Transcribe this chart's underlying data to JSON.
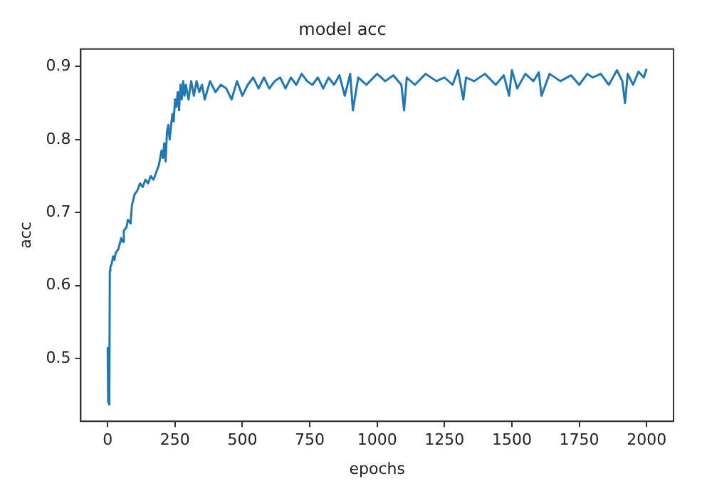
{
  "chart_data": {
    "type": "line",
    "title": "model acc",
    "xlabel": "epochs",
    "ylabel": "acc",
    "x": [
      0,
      2,
      4,
      6,
      8,
      10,
      15,
      20,
      25,
      30,
      40,
      50,
      55,
      60,
      70,
      75,
      85,
      90,
      100,
      110,
      120,
      130,
      140,
      150,
      160,
      170,
      180,
      190,
      200,
      205,
      210,
      215,
      220,
      225,
      230,
      240,
      245,
      250,
      255,
      260,
      265,
      270,
      275,
      280,
      285,
      290,
      300,
      310,
      320,
      330,
      340,
      350,
      360,
      380,
      400,
      420,
      440,
      460,
      480,
      500,
      520,
      540,
      560,
      580,
      600,
      620,
      640,
      660,
      680,
      700,
      720,
      740,
      760,
      780,
      800,
      820,
      840,
      860,
      880,
      900,
      910,
      930,
      960,
      1000,
      1030,
      1060,
      1090,
      1100,
      1110,
      1140,
      1180,
      1220,
      1250,
      1280,
      1300,
      1320,
      1330,
      1360,
      1400,
      1440,
      1470,
      1490,
      1500,
      1520,
      1550,
      1580,
      1600,
      1610,
      1640,
      1680,
      1720,
      1750,
      1780,
      1800,
      1830,
      1860,
      1890,
      1910,
      1920,
      1930,
      1950,
      1970,
      1990,
      2000
    ],
    "series": [
      {
        "color": "#1f77b4",
        "values": [
          0.515,
          0.44,
          0.47,
          0.437,
          0.62,
          0.625,
          0.63,
          0.64,
          0.635,
          0.645,
          0.65,
          0.665,
          0.66,
          0.675,
          0.68,
          0.69,
          0.685,
          0.71,
          0.725,
          0.73,
          0.74,
          0.735,
          0.745,
          0.74,
          0.75,
          0.745,
          0.755,
          0.765,
          0.785,
          0.775,
          0.795,
          0.77,
          0.81,
          0.82,
          0.8,
          0.835,
          0.825,
          0.855,
          0.845,
          0.865,
          0.84,
          0.875,
          0.855,
          0.88,
          0.86,
          0.875,
          0.855,
          0.88,
          0.86,
          0.88,
          0.865,
          0.875,
          0.855,
          0.88,
          0.865,
          0.875,
          0.87,
          0.855,
          0.88,
          0.86,
          0.875,
          0.885,
          0.87,
          0.885,
          0.87,
          0.88,
          0.885,
          0.87,
          0.885,
          0.875,
          0.89,
          0.88,
          0.875,
          0.885,
          0.87,
          0.885,
          0.875,
          0.888,
          0.86,
          0.89,
          0.84,
          0.885,
          0.875,
          0.89,
          0.88,
          0.888,
          0.875,
          0.84,
          0.885,
          0.875,
          0.89,
          0.88,
          0.885,
          0.875,
          0.895,
          0.855,
          0.885,
          0.88,
          0.89,
          0.875,
          0.888,
          0.86,
          0.895,
          0.87,
          0.89,
          0.88,
          0.892,
          0.86,
          0.89,
          0.88,
          0.888,
          0.875,
          0.89,
          0.885,
          0.89,
          0.875,
          0.895,
          0.88,
          0.85,
          0.89,
          0.875,
          0.893,
          0.885,
          0.897
        ]
      }
    ],
    "xlim": [
      -100,
      2100
    ],
    "xticks": [
      0,
      250,
      500,
      750,
      1000,
      1250,
      1500,
      1750,
      2000
    ],
    "ylim": [
      0.414,
      0.924
    ],
    "yticks": [
      0.5,
      0.6,
      0.7,
      0.8,
      0.9
    ],
    "grid": false,
    "legend": false,
    "marker": "none",
    "line_style": "solid"
  }
}
